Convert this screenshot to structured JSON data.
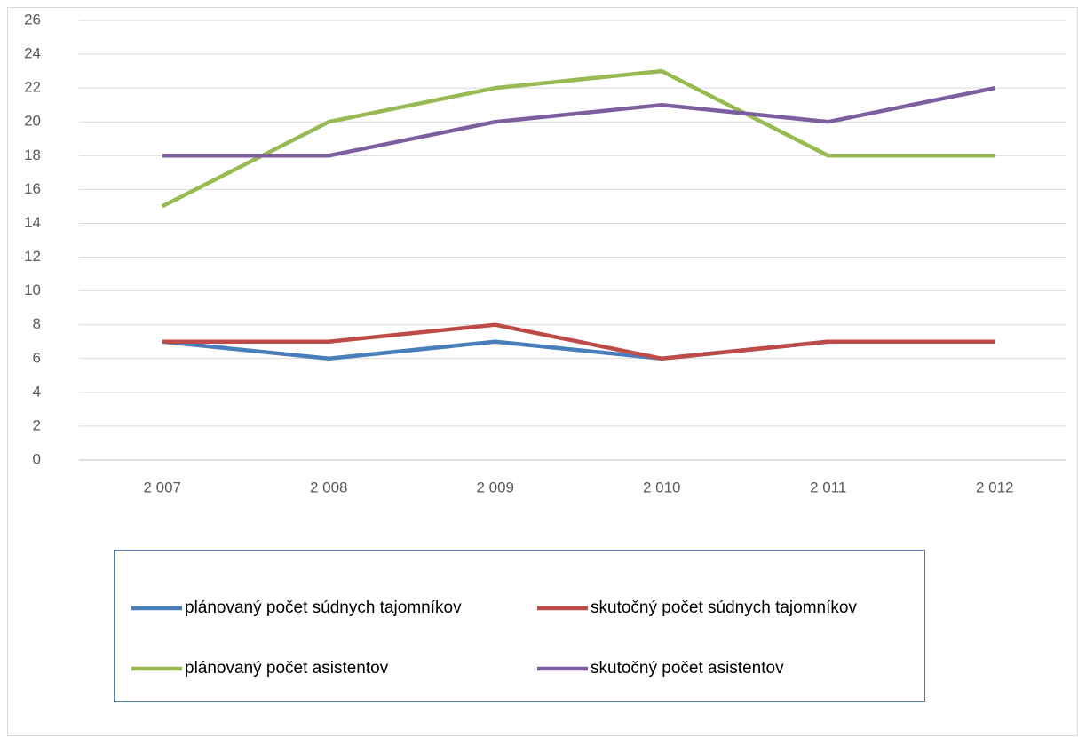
{
  "chart_data": {
    "type": "line",
    "categories": [
      "2 007",
      "2 008",
      "2 009",
      "2 010",
      "2 011",
      "2 012"
    ],
    "series": [
      {
        "name": "plánovaný počet súdnych tajomníkov",
        "color": "#4a7ebb",
        "values": [
          7,
          6,
          7,
          6,
          7,
          7
        ]
      },
      {
        "name": "skutočný počet súdnych tajomníkov",
        "color": "#be4b48",
        "values": [
          7,
          7,
          8,
          6,
          7,
          7
        ]
      },
      {
        "name": "plánovaný počet asistentov",
        "color": "#98b954",
        "values": [
          15,
          20,
          22,
          23,
          18,
          18
        ]
      },
      {
        "name": "skutočný počet asistentov",
        "color": "#7d5fa0",
        "values": [
          18,
          18,
          20,
          21,
          20,
          22
        ]
      }
    ],
    "ylim": [
      0,
      26
    ],
    "yticks": [
      0,
      2,
      4,
      6,
      8,
      10,
      12,
      14,
      16,
      18,
      20,
      22,
      24,
      26
    ],
    "grid": true,
    "legend": "bottom"
  }
}
